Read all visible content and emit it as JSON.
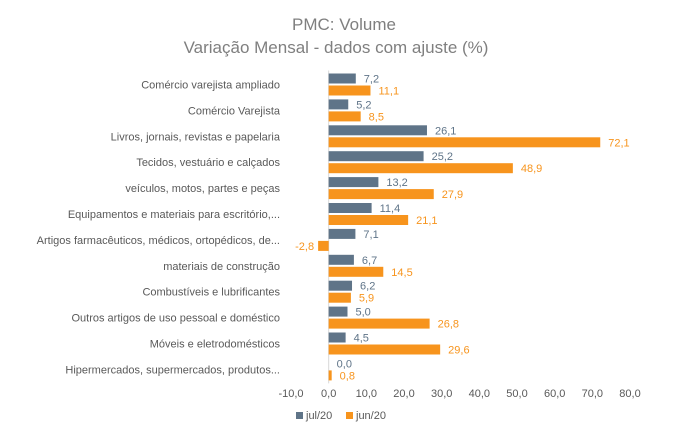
{
  "chart_data": {
    "type": "bar",
    "orientation": "horizontal",
    "title": "PMC: Volume",
    "subtitle": "Variação Mensal - dados com ajuste (%)",
    "categories": [
      "Comércio varejista ampliado",
      "Comércio Varejista",
      "Livros, jornais, revistas e papelaria",
      "Tecidos, vestuário e calçados",
      "veículos, motos, partes e peças",
      "Equipamentos e materiais para escritório,...",
      "Artigos farmacêuticos, médicos, ortopédicos, de...",
      "materiais de construção",
      "Combustíveis e lubrificantes",
      "Outros artigos de uso pessoal e doméstico",
      "Móveis e eletrodomésticos",
      "Hipermercados, supermercados, produtos..."
    ],
    "series": [
      {
        "name": "jul/20",
        "color": "#5f7488",
        "values": [
          7.2,
          5.2,
          26.1,
          25.2,
          13.2,
          11.4,
          7.1,
          6.7,
          6.2,
          5.0,
          4.5,
          0.0
        ],
        "labels": [
          "7,2",
          "5,2",
          "26,1",
          "25,2",
          "13,2",
          "11,4",
          "7,1",
          "6,7",
          "6,2",
          "5,0",
          "4,5",
          "0,0"
        ]
      },
      {
        "name": "jun/20",
        "color": "#f7941d",
        "values": [
          11.1,
          8.5,
          72.1,
          48.9,
          27.9,
          21.1,
          -2.8,
          14.5,
          5.9,
          26.8,
          29.6,
          0.8
        ],
        "labels": [
          "11,1",
          "8,5",
          "72,1",
          "48,9",
          "27,9",
          "21,1",
          "-2,8",
          "14,5",
          "5,9",
          "26,8",
          "29,6",
          "0,8"
        ]
      }
    ],
    "xlim": [
      -10,
      80
    ],
    "xticks": [
      "-10,0",
      "0,0",
      "10,0",
      "20,0",
      "30,0",
      "40,0",
      "50,0",
      "60,0",
      "70,0",
      "80,0"
    ],
    "xtick_values": [
      -10,
      0,
      10,
      20,
      30,
      40,
      50,
      60,
      70,
      80
    ],
    "grid": false,
    "legend_position": "bottom"
  }
}
